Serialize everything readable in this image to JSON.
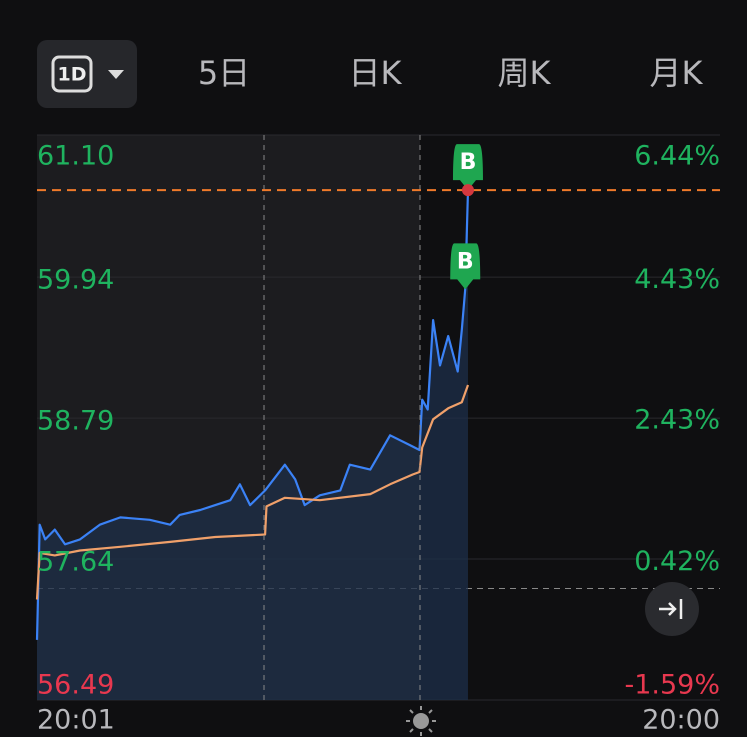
{
  "tabs": [
    "1D",
    "5日",
    "日K",
    "周K",
    "月K"
  ],
  "chart_data": {
    "type": "line",
    "xlim": [
      0,
      100
    ],
    "ylim": [
      56.49,
      61.1
    ],
    "yticks": [
      {
        "value": 61.1,
        "label": "61.10"
      },
      59.94,
      58.79,
      57.64,
      56.49
    ],
    "y2lim": [
      -1.59,
      6.44
    ],
    "y2ticks": [
      {
        "value": 6.44,
        "label": "6.44%"
      },
      {
        "value": 4.43,
        "label": "4.43%"
      },
      {
        "value": 2.43,
        "label": "2.43%"
      },
      {
        "value": 0.42,
        "label": "0.42%"
      },
      {
        "value": -1.59,
        "label": "-1.59%"
      }
    ],
    "x_labels": [
      "20:01",
      "20:00"
    ],
    "prev_close": 57.4,
    "last_price": 60.65,
    "up_color": "#1fb35f",
    "down_color": "#e8384f",
    "series": [
      {
        "name": "price",
        "color": "#3b82f6",
        "x": [
          0,
          0.4,
          1.2,
          2.6,
          4.1,
          6.3,
          9.2,
          12.2,
          16.5,
          19.5,
          20.9,
          23.9,
          26.1,
          28.3,
          29.7,
          31.2,
          33.4,
          36.3,
          37.8,
          39.2,
          41.4,
          44.4,
          45.8,
          48.8,
          51.7,
          54.6,
          56.0,
          56.4,
          57.2,
          58.0,
          59.0,
          60.2,
          61.6,
          62.2,
          62.7,
          63.1
        ],
        "values": [
          56.98,
          57.92,
          57.8,
          57.88,
          57.76,
          57.8,
          57.92,
          57.98,
          57.96,
          57.92,
          58.0,
          58.04,
          58.08,
          58.12,
          58.25,
          58.08,
          58.2,
          58.41,
          58.29,
          58.08,
          58.16,
          58.2,
          58.41,
          58.37,
          58.65,
          58.57,
          58.53,
          58.94,
          58.86,
          59.59,
          59.22,
          59.46,
          59.17,
          59.51,
          59.84,
          60.65
        ]
      },
      {
        "name": "average",
        "color": "#f0a06a",
        "x": [
          0,
          0.4,
          2.6,
          6.3,
          12.2,
          19.5,
          26.1,
          33.4,
          33.6,
          36.3,
          41.4,
          48.8,
          51.7,
          55.0,
          56.0,
          56.4,
          58.0,
          60.2,
          62.2,
          63.1
        ],
        "values": [
          57.31,
          57.69,
          57.67,
          57.71,
          57.74,
          57.78,
          57.82,
          57.84,
          58.07,
          58.14,
          58.12,
          58.17,
          58.25,
          58.33,
          58.35,
          58.55,
          58.78,
          58.87,
          58.92,
          59.06
        ]
      }
    ],
    "markers": [
      {
        "label": "B",
        "x": 63.1,
        "y": 60.65,
        "color": "#1fa650"
      },
      {
        "label": "B",
        "x": 62.7,
        "y": 59.84,
        "color": "#1fa650"
      }
    ]
  }
}
